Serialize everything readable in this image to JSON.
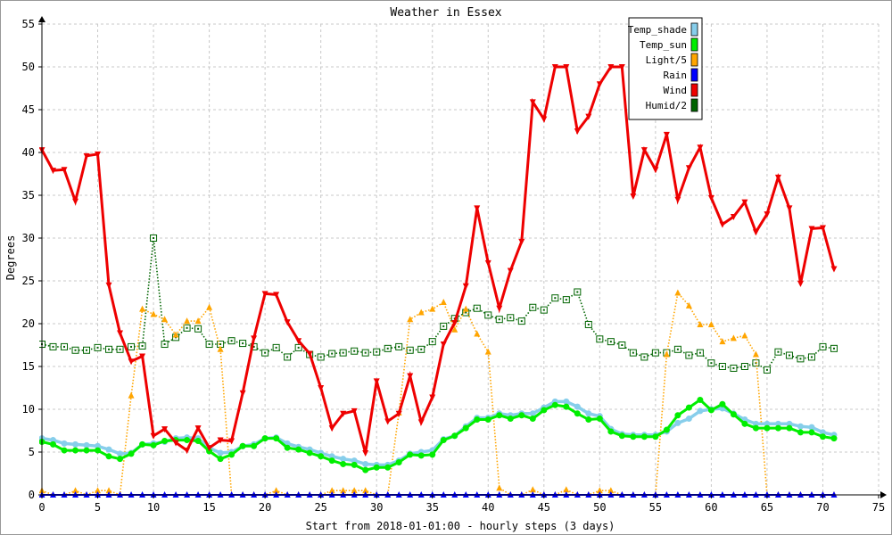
{
  "chart_data": {
    "type": "line",
    "title": "Weather in Essex",
    "xlabel": "Start from 2018-01-01:00 - hourly steps (3 days)",
    "ylabel": "Degrees",
    "xlim": [
      0,
      75
    ],
    "ylim": [
      0,
      55
    ],
    "x_ticks": [
      0,
      5,
      10,
      15,
      20,
      25,
      30,
      35,
      40,
      45,
      50,
      55,
      60,
      65,
      70,
      75
    ],
    "y_ticks": [
      0,
      5,
      10,
      15,
      20,
      25,
      30,
      35,
      40,
      45,
      50,
      55
    ],
    "grid": true,
    "legend_position": "top-right",
    "x": [
      0,
      1,
      2,
      3,
      4,
      5,
      6,
      7,
      8,
      9,
      10,
      11,
      12,
      13,
      14,
      15,
      16,
      17,
      18,
      19,
      20,
      21,
      22,
      23,
      24,
      25,
      26,
      27,
      28,
      29,
      30,
      31,
      32,
      33,
      34,
      35,
      36,
      37,
      38,
      39,
      40,
      41,
      42,
      43,
      44,
      45,
      46,
      47,
      48,
      49,
      50,
      51,
      52,
      53,
      54,
      55,
      56,
      57,
      58,
      59,
      60,
      61,
      62,
      63,
      64,
      65,
      66,
      67,
      68,
      69,
      70,
      71
    ],
    "series": [
      {
        "name": "Temp_shade",
        "color": "#87ceeb",
        "style": "solid-thick",
        "values": [
          6.6,
          6.4,
          6.0,
          5.9,
          5.8,
          5.7,
          5.3,
          4.8,
          4.9,
          5.9,
          6.0,
          6.2,
          6.6,
          6.7,
          6.6,
          5.5,
          4.9,
          5.0,
          5.7,
          5.9,
          6.6,
          6.7,
          6.0,
          5.6,
          5.3,
          4.9,
          4.5,
          4.2,
          4.0,
          3.6,
          3.5,
          3.5,
          4.0,
          4.8,
          5.0,
          5.2,
          6.5,
          6.9,
          8.0,
          9.0,
          9.0,
          9.5,
          9.3,
          9.5,
          9.5,
          10.2,
          10.9,
          10.9,
          10.3,
          9.5,
          9.2,
          7.7,
          7.1,
          7.0,
          7.0,
          7.0,
          7.4,
          8.4,
          8.9,
          9.8,
          10.0,
          10.1,
          9.5,
          8.8,
          8.3,
          8.3,
          8.3,
          8.3,
          8.0,
          7.9,
          7.3,
          7.0
        ]
      },
      {
        "name": "Temp_sun",
        "color": "#00ee00",
        "style": "solid-thick",
        "values": [
          6.2,
          5.9,
          5.2,
          5.2,
          5.2,
          5.2,
          4.5,
          4.2,
          4.8,
          5.9,
          5.8,
          6.3,
          6.4,
          6.4,
          6.3,
          5.1,
          4.2,
          4.7,
          5.7,
          5.7,
          6.6,
          6.6,
          5.5,
          5.3,
          4.9,
          4.5,
          4.0,
          3.6,
          3.5,
          2.9,
          3.2,
          3.2,
          3.8,
          4.7,
          4.6,
          4.7,
          6.4,
          6.9,
          7.8,
          8.8,
          8.8,
          9.3,
          8.9,
          9.3,
          8.9,
          9.9,
          10.5,
          10.3,
          9.5,
          8.8,
          8.9,
          7.4,
          6.9,
          6.8,
          6.8,
          6.8,
          7.6,
          9.3,
          10.2,
          11.1,
          9.9,
          10.6,
          9.4,
          8.3,
          7.8,
          7.8,
          7.8,
          7.8,
          7.3,
          7.3,
          6.8,
          6.6
        ]
      },
      {
        "name": "Light/5",
        "color": "#ffa500",
        "style": "dotted",
        "values": [
          0.5,
          0,
          0,
          0.5,
          0,
          0.5,
          0.5,
          0,
          11.6,
          21.7,
          21.1,
          20.5,
          18.7,
          20.3,
          20.3,
          21.9,
          17.0,
          0,
          0,
          0,
          0,
          0.5,
          0,
          0,
          0,
          0,
          0.5,
          0.5,
          0.5,
          0.5,
          0,
          0,
          9.6,
          20.5,
          21.3,
          21.7,
          22.5,
          19.3,
          21.7,
          18.8,
          16.7,
          0.8,
          0,
          0,
          0.6,
          0,
          0,
          0.6,
          0,
          0,
          0.5,
          0.5,
          0,
          0,
          0,
          0,
          16.4,
          23.6,
          22.1,
          19.9,
          19.9,
          17.9,
          18.3,
          18.6,
          16.4,
          0,
          0,
          0,
          0,
          0,
          0,
          0
        ]
      },
      {
        "name": "Rain",
        "color": "#0000ff",
        "style": "solid",
        "values": [
          0,
          0,
          0,
          0,
          0,
          0,
          0,
          0,
          0,
          0,
          0,
          0,
          0,
          0,
          0,
          0,
          0,
          0,
          0,
          0,
          0,
          0,
          0,
          0,
          0,
          0,
          0,
          0,
          0,
          0,
          0,
          0,
          0,
          0,
          0,
          0,
          0,
          0,
          0,
          0,
          0,
          0,
          0,
          0,
          0,
          0,
          0,
          0,
          0,
          0,
          0,
          0,
          0,
          0,
          0,
          0,
          0,
          0,
          0,
          0,
          0,
          0,
          0,
          0,
          0,
          0,
          0,
          0,
          0,
          0,
          0,
          0
        ]
      },
      {
        "name": "Wind",
        "color": "#ee0000",
        "style": "solid-thick",
        "values": [
          40.3,
          37.9,
          38.0,
          34.3,
          39.6,
          39.8,
          24.5,
          18.9,
          15.6,
          16.2,
          6.9,
          7.7,
          6.1,
          5.2,
          7.8,
          5.5,
          6.4,
          6.3,
          11.9,
          18.3,
          23.5,
          23.4,
          20.2,
          18.0,
          16.5,
          12.5,
          7.8,
          9.5,
          9.8,
          4.9,
          13.3,
          8.6,
          9.5,
          13.9,
          8.5,
          11.4,
          17.6,
          20.1,
          24.4,
          33.5,
          27.1,
          21.8,
          26.2,
          29.6,
          45.9,
          43.9,
          50.0,
          50.0,
          42.5,
          44.2,
          48.0,
          50.0,
          50.0,
          34.9,
          40.3,
          38.0,
          42.1,
          34.5,
          38.2,
          40.6,
          34.7,
          31.6,
          32.5,
          34.2,
          30.7,
          32.8,
          37.1,
          33.5,
          24.7,
          31.1,
          31.2,
          26.4
        ]
      },
      {
        "name": "Humid/2",
        "color": "#006400",
        "style": "dotted",
        "values": [
          17.6,
          17.3,
          17.3,
          16.9,
          16.9,
          17.2,
          17.0,
          17.0,
          17.3,
          17.4,
          30.0,
          17.6,
          18.4,
          19.5,
          19.4,
          17.6,
          17.6,
          18.0,
          17.7,
          17.3,
          16.6,
          17.2,
          16.1,
          17.2,
          16.4,
          16.1,
          16.5,
          16.6,
          16.8,
          16.6,
          16.7,
          17.1,
          17.3,
          16.9,
          17.0,
          17.9,
          19.7,
          20.6,
          21.3,
          21.8,
          21.0,
          20.5,
          20.7,
          20.3,
          21.9,
          21.6,
          23.0,
          22.8,
          23.7,
          19.9,
          18.2,
          17.9,
          17.5,
          16.6,
          16.1,
          16.6,
          16.6,
          17.0,
          16.3,
          16.6,
          15.4,
          15.0,
          14.8,
          15.0,
          15.4,
          14.6,
          16.7,
          16.3,
          15.9,
          16.1,
          17.3,
          17.1
        ]
      }
    ]
  }
}
